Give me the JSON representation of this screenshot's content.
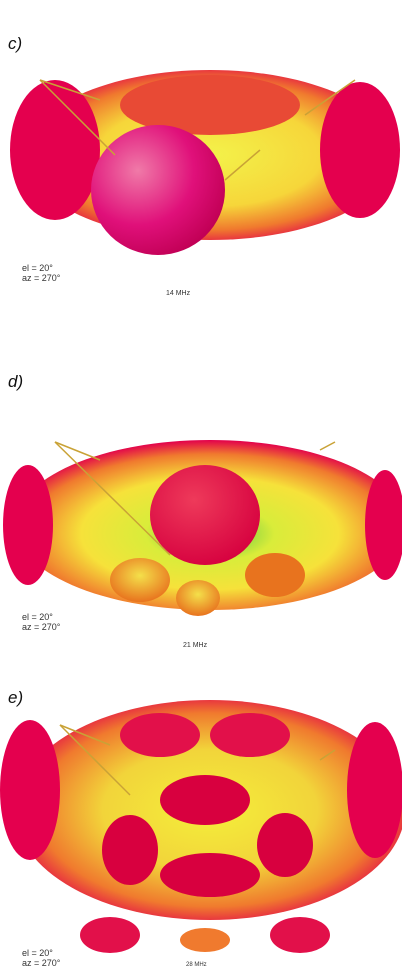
{
  "panels": [
    {
      "label": "c)",
      "el": "el = 20°",
      "az": "az = 270°",
      "freq": "14 MHz"
    },
    {
      "label": "d)",
      "el": "el = 20°",
      "az": "az = 270°",
      "freq": "21 MHz"
    },
    {
      "label": "e)",
      "el": "el = 20°",
      "az": "az = 270°",
      "freq": "28 MHz"
    }
  ],
  "colors": {
    "lobe_max": "#e2004c",
    "lobe_mid": "#f4ef3a",
    "lobe_low": "#3fbf4a",
    "antenna": "#c9a236"
  }
}
